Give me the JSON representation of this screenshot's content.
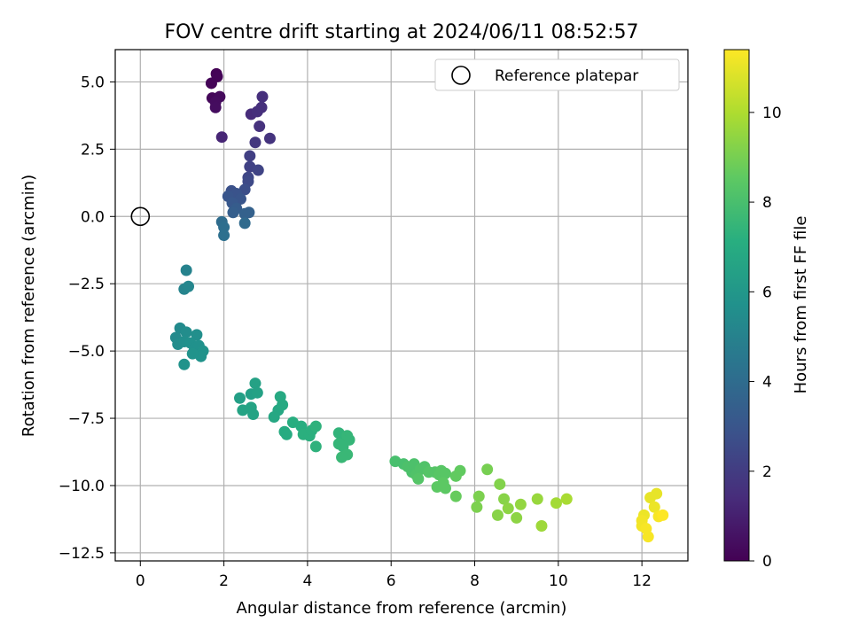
{
  "chart_data": {
    "type": "scatter",
    "title": "FOV centre drift starting at 2024/06/11 08:52:57",
    "xlabel": "Angular distance from reference (arcmin)",
    "ylabel": "Rotation from reference (arcmin)",
    "xlim": [
      -0.6,
      13.1
    ],
    "ylim": [
      -12.8,
      6.2
    ],
    "xticks": [
      0,
      2,
      4,
      6,
      8,
      10,
      12
    ],
    "yticks": [
      -12.5,
      -10.0,
      -7.5,
      -5.0,
      -2.5,
      0.0,
      2.5,
      5.0
    ],
    "grid": true,
    "legend": {
      "position": "top-right",
      "entries": [
        {
          "label": "Reference platepar",
          "marker": "open-circle"
        }
      ]
    },
    "reference_point": {
      "x": 0,
      "y": 0
    },
    "colorbar": {
      "label": "Hours from first FF file",
      "colormap": "viridis",
      "range": [
        0,
        11.4
      ],
      "ticks": [
        0,
        2,
        4,
        6,
        8,
        10
      ]
    },
    "points": [
      {
        "x": 1.82,
        "y": 5.3,
        "t": 0.05
      },
      {
        "x": 1.84,
        "y": 5.2,
        "t": 0.1
      },
      {
        "x": 1.7,
        "y": 4.95,
        "t": 0.1
      },
      {
        "x": 1.72,
        "y": 4.4,
        "t": 0.2
      },
      {
        "x": 1.9,
        "y": 4.45,
        "t": 0.3
      },
      {
        "x": 1.8,
        "y": 4.25,
        "t": 0.35
      },
      {
        "x": 1.8,
        "y": 4.05,
        "t": 0.4
      },
      {
        "x": 1.95,
        "y": 2.95,
        "t": 1.2
      },
      {
        "x": 2.65,
        "y": 3.8,
        "t": 1.4
      },
      {
        "x": 2.8,
        "y": 3.9,
        "t": 1.5
      },
      {
        "x": 2.92,
        "y": 4.45,
        "t": 1.5
      },
      {
        "x": 2.9,
        "y": 4.05,
        "t": 1.55
      },
      {
        "x": 2.85,
        "y": 3.35,
        "t": 1.6
      },
      {
        "x": 3.1,
        "y": 2.9,
        "t": 1.7
      },
      {
        "x": 2.75,
        "y": 2.75,
        "t": 1.8
      },
      {
        "x": 2.62,
        "y": 2.25,
        "t": 2.1
      },
      {
        "x": 2.62,
        "y": 1.85,
        "t": 2.2
      },
      {
        "x": 2.82,
        "y": 1.72,
        "t": 2.3
      },
      {
        "x": 2.58,
        "y": 1.45,
        "t": 2.4
      },
      {
        "x": 2.58,
        "y": 1.3,
        "t": 2.5
      },
      {
        "x": 2.5,
        "y": 1.0,
        "t": 2.7
      },
      {
        "x": 2.18,
        "y": 0.95,
        "t": 2.8
      },
      {
        "x": 2.3,
        "y": 0.85,
        "t": 2.9
      },
      {
        "x": 2.1,
        "y": 0.75,
        "t": 3.0
      },
      {
        "x": 2.4,
        "y": 0.65,
        "t": 3.0
      },
      {
        "x": 2.2,
        "y": 0.5,
        "t": 3.1
      },
      {
        "x": 2.3,
        "y": 0.3,
        "t": 3.3
      },
      {
        "x": 2.22,
        "y": 0.15,
        "t": 3.4
      },
      {
        "x": 2.6,
        "y": 0.15,
        "t": 3.5
      },
      {
        "x": 2.5,
        "y": 0.1,
        "t": 3.5
      },
      {
        "x": 2.5,
        "y": -0.25,
        "t": 3.9
      },
      {
        "x": 1.95,
        "y": -0.2,
        "t": 4.0
      },
      {
        "x": 2.0,
        "y": -0.4,
        "t": 4.1
      },
      {
        "x": 2.0,
        "y": -0.7,
        "t": 4.2
      },
      {
        "x": 1.1,
        "y": -2.0,
        "t": 5.0
      },
      {
        "x": 1.05,
        "y": -2.7,
        "t": 5.1
      },
      {
        "x": 1.15,
        "y": -2.6,
        "t": 5.2
      },
      {
        "x": 0.95,
        "y": -4.15,
        "t": 5.4
      },
      {
        "x": 1.1,
        "y": -4.3,
        "t": 5.5
      },
      {
        "x": 0.85,
        "y": -4.5,
        "t": 5.4
      },
      {
        "x": 0.9,
        "y": -4.75,
        "t": 5.5
      },
      {
        "x": 1.05,
        "y": -4.65,
        "t": 5.6
      },
      {
        "x": 1.35,
        "y": -4.4,
        "t": 5.6
      },
      {
        "x": 1.2,
        "y": -4.7,
        "t": 5.7
      },
      {
        "x": 1.3,
        "y": -4.9,
        "t": 5.7
      },
      {
        "x": 1.4,
        "y": -4.8,
        "t": 5.7
      },
      {
        "x": 1.5,
        "y": -5.0,
        "t": 5.8
      },
      {
        "x": 1.45,
        "y": -5.2,
        "t": 5.8
      },
      {
        "x": 1.25,
        "y": -5.1,
        "t": 5.8
      },
      {
        "x": 1.05,
        "y": -5.5,
        "t": 5.8
      },
      {
        "x": 2.38,
        "y": -6.75,
        "t": 6.4
      },
      {
        "x": 2.65,
        "y": -6.6,
        "t": 6.4
      },
      {
        "x": 2.75,
        "y": -6.2,
        "t": 6.5
      },
      {
        "x": 2.8,
        "y": -6.55,
        "t": 6.5
      },
      {
        "x": 2.45,
        "y": -7.2,
        "t": 6.6
      },
      {
        "x": 2.65,
        "y": -7.1,
        "t": 6.6
      },
      {
        "x": 2.7,
        "y": -7.35,
        "t": 6.6
      },
      {
        "x": 3.3,
        "y": -7.2,
        "t": 6.8
      },
      {
        "x": 3.2,
        "y": -7.45,
        "t": 6.8
      },
      {
        "x": 3.35,
        "y": -6.7,
        "t": 6.9
      },
      {
        "x": 3.4,
        "y": -7.0,
        "t": 6.9
      },
      {
        "x": 3.45,
        "y": -8.0,
        "t": 7.0
      },
      {
        "x": 3.5,
        "y": -8.1,
        "t": 7.0
      },
      {
        "x": 3.65,
        "y": -7.65,
        "t": 7.1
      },
      {
        "x": 3.85,
        "y": -7.8,
        "t": 7.1
      },
      {
        "x": 3.9,
        "y": -8.1,
        "t": 7.2
      },
      {
        "x": 4.05,
        "y": -8.15,
        "t": 7.2
      },
      {
        "x": 4.1,
        "y": -7.95,
        "t": 7.2
      },
      {
        "x": 4.2,
        "y": -7.8,
        "t": 7.3
      },
      {
        "x": 4.2,
        "y": -8.55,
        "t": 7.3
      },
      {
        "x": 4.75,
        "y": -8.05,
        "t": 7.4
      },
      {
        "x": 4.85,
        "y": -8.25,
        "t": 7.4
      },
      {
        "x": 4.95,
        "y": -8.15,
        "t": 7.5
      },
      {
        "x": 5.0,
        "y": -8.3,
        "t": 7.5
      },
      {
        "x": 4.75,
        "y": -8.45,
        "t": 7.5
      },
      {
        "x": 4.85,
        "y": -8.55,
        "t": 7.5
      },
      {
        "x": 4.95,
        "y": -8.85,
        "t": 7.6
      },
      {
        "x": 4.82,
        "y": -8.95,
        "t": 7.6
      },
      {
        "x": 6.1,
        "y": -9.1,
        "t": 8.0
      },
      {
        "x": 6.3,
        "y": -9.2,
        "t": 8.0
      },
      {
        "x": 6.4,
        "y": -9.3,
        "t": 8.1
      },
      {
        "x": 6.5,
        "y": -9.5,
        "t": 8.1
      },
      {
        "x": 6.55,
        "y": -9.2,
        "t": 8.1
      },
      {
        "x": 6.6,
        "y": -9.6,
        "t": 8.2
      },
      {
        "x": 6.7,
        "y": -9.4,
        "t": 8.2
      },
      {
        "x": 6.8,
        "y": -9.3,
        "t": 8.2
      },
      {
        "x": 6.9,
        "y": -9.5,
        "t": 8.3
      },
      {
        "x": 6.65,
        "y": -9.75,
        "t": 8.3
      },
      {
        "x": 7.05,
        "y": -9.5,
        "t": 8.3
      },
      {
        "x": 7.15,
        "y": -9.6,
        "t": 8.4
      },
      {
        "x": 7.2,
        "y": -9.45,
        "t": 8.4
      },
      {
        "x": 7.3,
        "y": -9.55,
        "t": 8.4
      },
      {
        "x": 7.1,
        "y": -10.05,
        "t": 8.5
      },
      {
        "x": 7.3,
        "y": -10.1,
        "t": 8.5
      },
      {
        "x": 7.25,
        "y": -9.9,
        "t": 8.5
      },
      {
        "x": 7.55,
        "y": -9.65,
        "t": 8.6
      },
      {
        "x": 7.65,
        "y": -9.45,
        "t": 8.6
      },
      {
        "x": 7.55,
        "y": -10.4,
        "t": 8.7
      },
      {
        "x": 8.3,
        "y": -9.4,
        "t": 9.0
      },
      {
        "x": 8.1,
        "y": -10.4,
        "t": 9.1
      },
      {
        "x": 8.05,
        "y": -10.8,
        "t": 9.1
      },
      {
        "x": 8.6,
        "y": -9.95,
        "t": 9.2
      },
      {
        "x": 8.7,
        "y": -10.5,
        "t": 9.3
      },
      {
        "x": 8.55,
        "y": -11.1,
        "t": 9.3
      },
      {
        "x": 8.8,
        "y": -10.85,
        "t": 9.4
      },
      {
        "x": 9.0,
        "y": -11.2,
        "t": 9.4
      },
      {
        "x": 9.1,
        "y": -10.7,
        "t": 9.5
      },
      {
        "x": 9.5,
        "y": -10.5,
        "t": 9.6
      },
      {
        "x": 9.6,
        "y": -11.5,
        "t": 9.7
      },
      {
        "x": 9.95,
        "y": -10.65,
        "t": 9.8
      },
      {
        "x": 10.2,
        "y": -10.5,
        "t": 9.9
      },
      {
        "x": 12.2,
        "y": -10.45,
        "t": 11.0
      },
      {
        "x": 12.35,
        "y": -10.3,
        "t": 11.0
      },
      {
        "x": 12.3,
        "y": -10.8,
        "t": 11.1
      },
      {
        "x": 12.05,
        "y": -11.1,
        "t": 11.1
      },
      {
        "x": 12.0,
        "y": -11.3,
        "t": 11.2
      },
      {
        "x": 12.0,
        "y": -11.5,
        "t": 11.2
      },
      {
        "x": 12.1,
        "y": -11.6,
        "t": 11.3
      },
      {
        "x": 12.15,
        "y": -11.9,
        "t": 11.3
      },
      {
        "x": 12.4,
        "y": -11.15,
        "t": 11.3
      },
      {
        "x": 12.5,
        "y": -11.1,
        "t": 11.4
      }
    ]
  }
}
